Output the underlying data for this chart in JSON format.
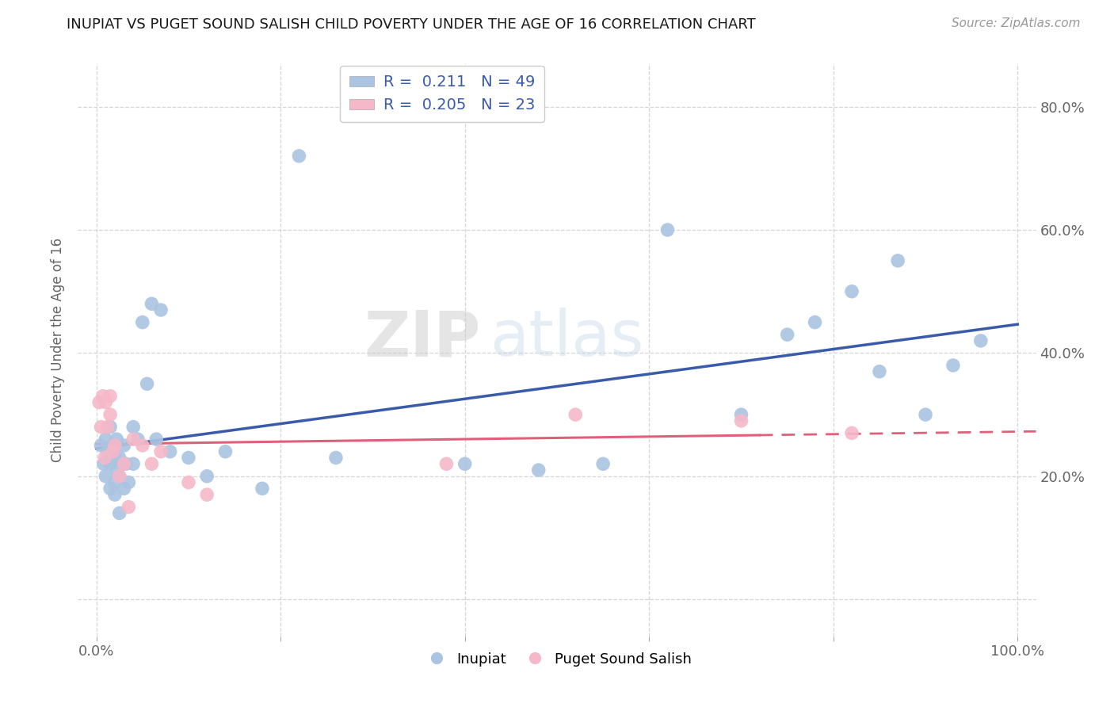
{
  "title": "INUPIAT VS PUGET SOUND SALISH CHILD POVERTY UNDER THE AGE OF 16 CORRELATION CHART",
  "source": "Source: ZipAtlas.com",
  "ylabel": "Child Poverty Under the Age of 16",
  "xlim": [
    -0.02,
    1.02
  ],
  "ylim": [
    -0.06,
    0.87
  ],
  "xtick_positions": [
    0.0,
    0.2,
    0.4,
    0.6,
    0.8,
    1.0
  ],
  "ytick_positions": [
    0.0,
    0.2,
    0.4,
    0.6,
    0.8
  ],
  "xticklabels": [
    "0.0%",
    "",
    "",
    "",
    "",
    "100.0%"
  ],
  "yticklabels_right": [
    "",
    "20.0%",
    "40.0%",
    "60.0%",
    "80.0%"
  ],
  "inupiat_R": 0.211,
  "inupiat_N": 49,
  "puget_R": 0.205,
  "puget_N": 23,
  "inupiat_color": "#aac4e2",
  "puget_color": "#f5b8c8",
  "inupiat_line_color": "#3a5baa",
  "puget_line_color": "#e0607a",
  "background_color": "#ffffff",
  "watermark_zip": "ZIP",
  "watermark_atlas": "atlas",
  "inupiat_x": [
    0.005,
    0.008,
    0.01,
    0.01,
    0.012,
    0.015,
    0.015,
    0.015,
    0.018,
    0.02,
    0.02,
    0.02,
    0.022,
    0.022,
    0.025,
    0.025,
    0.025,
    0.03,
    0.03,
    0.032,
    0.035,
    0.04,
    0.04,
    0.045,
    0.05,
    0.055,
    0.06,
    0.065,
    0.07,
    0.08,
    0.1,
    0.12,
    0.14,
    0.18,
    0.22,
    0.26,
    0.4,
    0.48,
    0.55,
    0.62,
    0.7,
    0.75,
    0.78,
    0.82,
    0.85,
    0.87,
    0.9,
    0.93,
    0.96
  ],
  "inupiat_y": [
    0.25,
    0.22,
    0.26,
    0.2,
    0.24,
    0.28,
    0.22,
    0.18,
    0.25,
    0.23,
    0.19,
    0.17,
    0.26,
    0.21,
    0.23,
    0.2,
    0.14,
    0.25,
    0.18,
    0.22,
    0.19,
    0.28,
    0.22,
    0.26,
    0.45,
    0.35,
    0.48,
    0.26,
    0.47,
    0.24,
    0.23,
    0.2,
    0.24,
    0.18,
    0.72,
    0.23,
    0.22,
    0.21,
    0.22,
    0.6,
    0.3,
    0.43,
    0.45,
    0.5,
    0.37,
    0.55,
    0.3,
    0.38,
    0.42
  ],
  "puget_x": [
    0.003,
    0.005,
    0.007,
    0.009,
    0.01,
    0.012,
    0.015,
    0.015,
    0.018,
    0.02,
    0.025,
    0.03,
    0.035,
    0.04,
    0.05,
    0.06,
    0.07,
    0.1,
    0.12,
    0.38,
    0.52,
    0.7,
    0.82
  ],
  "puget_y": [
    0.32,
    0.28,
    0.33,
    0.23,
    0.32,
    0.28,
    0.33,
    0.3,
    0.24,
    0.25,
    0.2,
    0.22,
    0.15,
    0.26,
    0.25,
    0.22,
    0.24,
    0.19,
    0.17,
    0.22,
    0.3,
    0.29,
    0.27
  ]
}
